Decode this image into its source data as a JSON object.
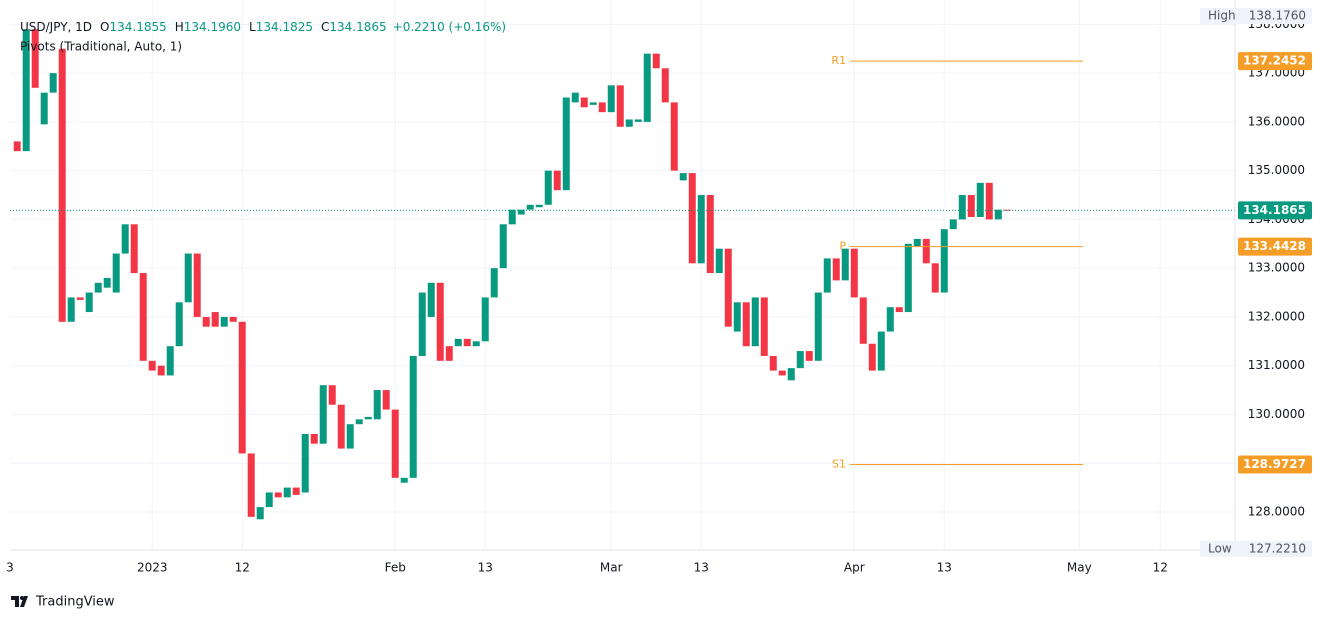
{
  "header": {
    "symbol": "USD/JPY, 1D",
    "ohlc": [
      {
        "key": "O",
        "value": "134.1855"
      },
      {
        "key": "H",
        "value": "134.1960"
      },
      {
        "key": "L",
        "value": "134.1825"
      },
      {
        "key": "C",
        "value": "134.1865"
      }
    ],
    "change": "+0.2210 (+0.16%)",
    "indicator": "Pivots (Traditional, Auto, 1)"
  },
  "chart_data": {
    "type": "candlestick",
    "up_color": "#089981",
    "down_color": "#f23645",
    "open": [
      135.6,
      135.4,
      137.9,
      135.95,
      136.6,
      137.5,
      131.9,
      132.4,
      132.1,
      132.5,
      132.6,
      132.5,
      133.3,
      133.9,
      132.9,
      131.1,
      131.0,
      130.8,
      131.4,
      132.3,
      133.3,
      132.0,
      132.1,
      131.8,
      132.0,
      131.9,
      129.2,
      127.85,
      128.1,
      128.4,
      128.3,
      128.5,
      128.4,
      129.6,
      129.4,
      130.6,
      130.2,
      129.3,
      129.8,
      129.9,
      129.9,
      130.5,
      130.1,
      128.6,
      128.7,
      131.2,
      132.0,
      132.7,
      131.4,
      131.4,
      131.55,
      131.4,
      131.5,
      132.4,
      133.0,
      133.9,
      134.1,
      134.2,
      134.25,
      134.3,
      135.0,
      134.6,
      136.4,
      136.5,
      136.35,
      136.4,
      136.2,
      136.75,
      135.9,
      136.0,
      136.0,
      137.4,
      137.1,
      136.4,
      134.8,
      134.95,
      133.1,
      134.5,
      132.9,
      133.4,
      131.7,
      132.3,
      131.4,
      132.4,
      131.2,
      130.9,
      130.7,
      130.95,
      131.3,
      131.1,
      132.5,
      133.2,
      132.75,
      133.4,
      132.4,
      131.45,
      130.9,
      131.7,
      132.2,
      132.1,
      133.45,
      133.6,
      133.1,
      132.5,
      133.8,
      134.0,
      134.5,
      134.05,
      134.75,
      134.0,
      134.2
    ],
    "high": {
      "label": "High",
      "value": {
        "value": 138.176,
        "label": "138.1760"
      }
    },
    "low": {
      "label": "Low",
      "value": {
        "value": 127.221,
        "label": "127.2210"
      }
    },
    "close": [
      135.4,
      137.9,
      136.7,
      136.6,
      137.0,
      131.9,
      132.4,
      132.35,
      132.5,
      132.7,
      132.8,
      133.3,
      133.9,
      132.9,
      131.1,
      130.9,
      130.8,
      131.4,
      132.3,
      133.3,
      132.0,
      131.8,
      131.8,
      132.0,
      131.9,
      129.2,
      127.9,
      128.1,
      128.4,
      128.3,
      128.5,
      128.35,
      129.6,
      129.4,
      130.6,
      130.2,
      129.3,
      129.8,
      129.9,
      129.95,
      130.5,
      130.1,
      128.7,
      128.7,
      131.2,
      132.5,
      132.7,
      131.1,
      131.1,
      131.55,
      131.4,
      131.5,
      132.4,
      133.0,
      133.9,
      134.2,
      134.2,
      134.3,
      134.3,
      135.0,
      134.6,
      136.5,
      136.6,
      136.3,
      136.4,
      136.2,
      136.75,
      135.9,
      136.05,
      136.05,
      137.4,
      137.1,
      136.4,
      135.0,
      134.95,
      133.1,
      134.5,
      132.9,
      133.4,
      131.8,
      132.3,
      131.4,
      132.4,
      131.2,
      130.9,
      130.8,
      130.95,
      131.3,
      131.1,
      132.5,
      133.2,
      132.75,
      133.4,
      132.4,
      131.45,
      130.9,
      131.7,
      132.2,
      132.1,
      133.5,
      133.6,
      133.1,
      132.5,
      133.8,
      134.0,
      134.5,
      134.05,
      134.75,
      134.0,
      134.2,
      134.19
    ],
    "xlim": [
      -0.8,
      135.3
    ],
    "xticks": [
      {
        "value": -1,
        "label": "3"
      },
      {
        "value": 15,
        "label": "2023"
      },
      {
        "value": 25,
        "label": "12"
      },
      {
        "value": 42,
        "label": "Feb"
      },
      {
        "value": 52,
        "label": "13"
      },
      {
        "value": 66,
        "label": "Mar"
      },
      {
        "value": 76,
        "label": "13"
      },
      {
        "value": 93,
        "label": "Apr"
      },
      {
        "value": 103,
        "label": "13"
      },
      {
        "value": 118,
        "label": "May"
      },
      {
        "value": 127,
        "label": "12"
      }
    ],
    "ylim": [
      127.22,
      138.5
    ],
    "yticks": [
      {
        "value": 128,
        "label": "128.0000"
      },
      {
        "value": 129,
        "label": "129.0000"
      },
      {
        "value": 130,
        "label": "130.0000"
      },
      {
        "value": 131,
        "label": "131.0000"
      },
      {
        "value": 132,
        "label": "132.0000"
      },
      {
        "value": 133,
        "label": "133.0000"
      },
      {
        "value": 134,
        "label": "134.0000"
      },
      {
        "value": 135,
        "label": "135.0000"
      },
      {
        "value": 136,
        "label": "136.0000"
      },
      {
        "value": 137,
        "label": "137.0000"
      },
      {
        "value": 138,
        "label": "138.0000"
      }
    ],
    "grid": true,
    "last_price": 134.1865,
    "pivot_color": "#f59d26",
    "pivots": [
      {
        "name": "R1",
        "value": 137.2452
      },
      {
        "name": "P",
        "value": 133.4428
      },
      {
        "name": "S1",
        "value": 128.9727
      }
    ]
  },
  "footer": {
    "brand": "TradingView"
  }
}
